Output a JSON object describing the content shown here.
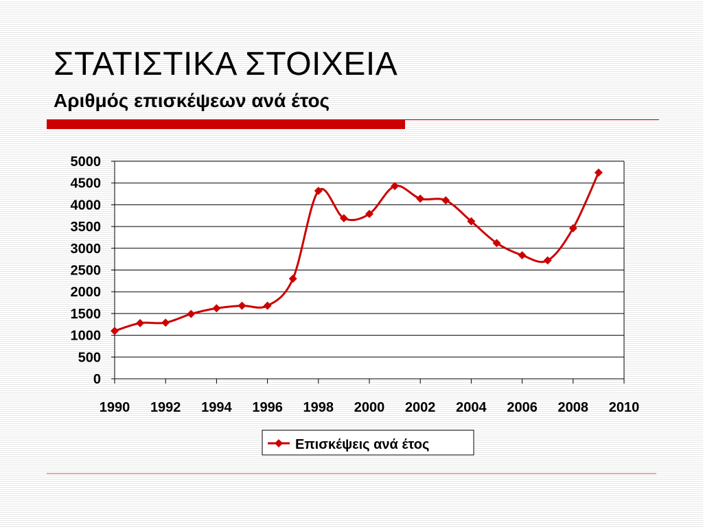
{
  "slide": {
    "title": "ΣΤΑΤΙΣΤΙΚΑ ΣΤΟΙΧΕΙΑ",
    "subtitle": "Αριθμός επισκέψεων ανά έτος",
    "accent_color": "#cc0000",
    "rule_color": "#cc0000"
  },
  "chart_data": {
    "type": "line",
    "title": "",
    "xlabel": "",
    "ylabel": "",
    "xlim": [
      1990,
      2010
    ],
    "ylim": [
      0,
      5000
    ],
    "x_ticks": [
      "1990",
      "1992",
      "1994",
      "1996",
      "1998",
      "2000",
      "2002",
      "2004",
      "2006",
      "2008",
      "2010"
    ],
    "y_ticks": [
      "0",
      "500",
      "1000",
      "1500",
      "2000",
      "2500",
      "3000",
      "3500",
      "4000",
      "4500",
      "5000"
    ],
    "grid": "horizontal",
    "smooth": true,
    "legend_position": "bottom",
    "series": [
      {
        "name": "Επισκέψεις ανά έτος",
        "color": "#cc0000",
        "marker": "diamond",
        "x": [
          1990,
          1991,
          1992,
          1993,
          1994,
          1995,
          1996,
          1997,
          1998,
          1999,
          2000,
          2001,
          2002,
          2003,
          2004,
          2005,
          2006,
          2007,
          2008,
          2009
        ],
        "values": [
          1100,
          1280,
          1290,
          1490,
          1620,
          1680,
          1680,
          2300,
          4320,
          3690,
          3790,
          4430,
          4140,
          4100,
          3620,
          3120,
          2840,
          2720,
          3460,
          4740
        ]
      }
    ]
  }
}
